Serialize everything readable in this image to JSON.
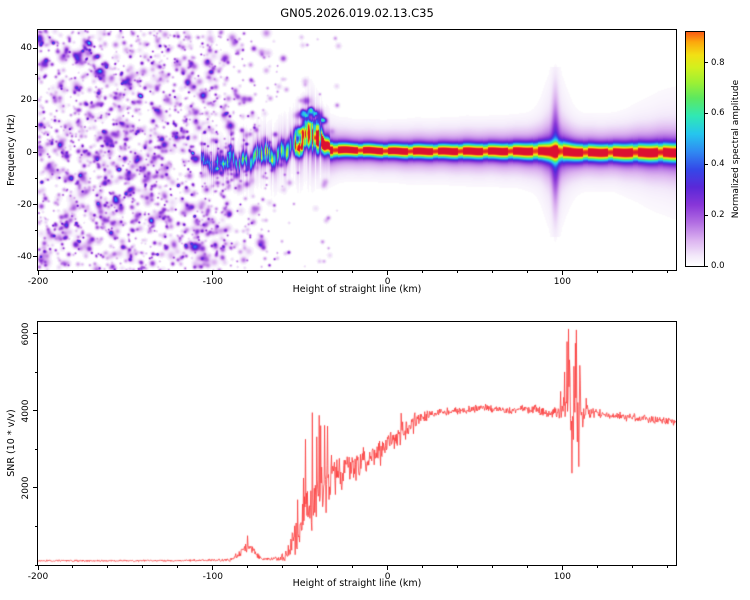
{
  "title": "GN05.2026.019.02.13.C35",
  "chart_data": [
    {
      "type": "heatmap",
      "title": "GN05.2026.019.02.13.C35",
      "xlabel": "Height of straight line (km)",
      "ylabel": "Frequency (Hz)",
      "xlim": [
        -200,
        165
      ],
      "ylim": [
        -45,
        47
      ],
      "xticks": [
        -200,
        -100,
        0,
        100
      ],
      "yticks": [
        -40,
        -20,
        0,
        20,
        40
      ],
      "x_minor_step": 20,
      "y_minor_step": 10,
      "seed": 7,
      "colorbar": {
        "label": "Normalized spectral amplitude",
        "ticks": [
          0.0,
          0.2,
          0.4,
          0.6,
          0.8
        ],
        "range": [
          0,
          0.92
        ],
        "colormap_stops": [
          [
            0.0,
            "#ffffff"
          ],
          [
            0.04,
            "#f3e9fa"
          ],
          [
            0.1,
            "#dcb4f0"
          ],
          [
            0.17,
            "#b26ee2"
          ],
          [
            0.24,
            "#8836d8"
          ],
          [
            0.31,
            "#5a28d8"
          ],
          [
            0.38,
            "#3448e8"
          ],
          [
            0.45,
            "#2f8af2"
          ],
          [
            0.52,
            "#25c6ee"
          ],
          [
            0.59,
            "#30e8b4"
          ],
          [
            0.66,
            "#5ce860"
          ],
          [
            0.72,
            "#9cf034"
          ],
          [
            0.78,
            "#d2f01e"
          ],
          [
            0.83,
            "#f2e014"
          ],
          [
            0.88,
            "#fca80c"
          ],
          [
            0.93,
            "#f85a14"
          ],
          [
            1.0,
            "#dc1030"
          ]
        ]
      },
      "noise_region": {
        "x_range": [
          -200,
          -52
        ],
        "full_density_until": -112,
        "amp_range": [
          0.05,
          0.3
        ],
        "blob_count": 2600,
        "tail": {
          "x_range": [
            -52,
            -28
          ],
          "count": 60
        },
        "cluster": {
          "x_range": [
            -53,
            -36
          ],
          "count": 50,
          "freq_offset": [
            -5,
            13
          ]
        }
      },
      "trace": {
        "points_format": "x_km, center_freq_hz, amplitude, sigma_hz",
        "start_x": -106.5,
        "points": [
          [
            -106,
            -2,
            0.32,
            2.0
          ],
          [
            -102,
            -4,
            0.34,
            2.0
          ],
          [
            -98,
            -2,
            0.38,
            2.0
          ],
          [
            -94,
            -5,
            0.36,
            2.0
          ],
          [
            -90,
            -3,
            0.42,
            2.1
          ],
          [
            -86,
            -4,
            0.4,
            2.1
          ],
          [
            -82,
            -1,
            0.46,
            2.2
          ],
          [
            -78,
            -3,
            0.48,
            2.2
          ],
          [
            -74,
            -2,
            0.52,
            2.3
          ],
          [
            -70,
            0,
            0.5,
            2.3
          ],
          [
            -66,
            -1,
            0.54,
            2.4
          ],
          [
            -62,
            1,
            0.58,
            2.4
          ],
          [
            -58,
            0,
            0.6,
            2.6
          ],
          [
            -54,
            2,
            0.64,
            2.8
          ],
          [
            -50,
            4,
            0.7,
            3.0
          ],
          [
            -47,
            7,
            0.74,
            3.2
          ],
          [
            -44,
            9,
            0.8,
            3.4
          ],
          [
            -42,
            6,
            0.82,
            3.1
          ],
          [
            -40,
            3,
            0.86,
            2.9
          ],
          [
            -38,
            4,
            0.9,
            2.6
          ],
          [
            -36,
            2,
            0.93,
            2.2
          ],
          [
            -33,
            1,
            0.96,
            1.9
          ],
          [
            -28,
            1,
            0.97,
            1.7
          ],
          [
            -20,
            1,
            0.97,
            1.6
          ],
          [
            -10,
            0.8,
            0.97,
            1.6
          ],
          [
            0,
            0.6,
            0.97,
            1.6
          ],
          [
            15,
            0.5,
            0.97,
            1.7
          ],
          [
            30,
            0.5,
            0.97,
            1.7
          ],
          [
            45,
            0.5,
            0.97,
            1.8
          ],
          [
            60,
            0.5,
            0.97,
            1.8
          ],
          [
            75,
            0.5,
            0.97,
            1.9
          ],
          [
            88,
            0.5,
            0.93,
            2.1
          ],
          [
            96,
            0.5,
            0.85,
            2.6
          ],
          [
            102,
            0.3,
            0.94,
            2.2
          ],
          [
            112,
            0,
            0.97,
            2.0
          ],
          [
            125,
            0,
            0.97,
            2.0
          ],
          [
            140,
            0,
            0.97,
            2.1
          ],
          [
            155,
            0,
            0.96,
            2.2
          ],
          [
            165,
            0,
            0.95,
            2.2
          ]
        ]
      },
      "vertical_streak": {
        "x": 96,
        "sigma_km": 2.0,
        "freq_sigma_hz": 15,
        "amp": 0.16
      }
    },
    {
      "type": "line",
      "xlabel": "Height of straight line (km)",
      "ylabel": "SNR (10 * v/v)",
      "xlim": [
        -200,
        165
      ],
      "ylim": [
        0,
        6300
      ],
      "xticks": [
        -200,
        -100,
        0,
        100
      ],
      "yticks": [
        2000,
        4000,
        6000
      ],
      "x_minor_step": 20,
      "y_minor_step": 1000,
      "seed": 13,
      "series": [
        {
          "name": "SNR",
          "color": "#fb3b3b",
          "base_points": [
            [
              -200,
              110
            ],
            [
              -150,
              110
            ],
            [
              -120,
              112
            ],
            [
              -100,
              125
            ],
            [
              -90,
              135
            ],
            [
              -84,
              300
            ],
            [
              -80,
              480
            ],
            [
              -77,
              380
            ],
            [
              -73,
              180
            ],
            [
              -68,
              150
            ],
            [
              -63,
              160
            ],
            [
              -58,
              260
            ],
            [
              -54,
              600
            ],
            [
              -50,
              1050
            ],
            [
              -46,
              1450
            ],
            [
              -42,
              1750
            ],
            [
              -38,
              2050
            ],
            [
              -34,
              2150
            ],
            [
              -30,
              2300
            ],
            [
              -25,
              2450
            ],
            [
              -20,
              2550
            ],
            [
              -15,
              2650
            ],
            [
              -10,
              2750
            ],
            [
              -5,
              2950
            ],
            [
              0,
              3100
            ],
            [
              5,
              3300
            ],
            [
              10,
              3500
            ],
            [
              15,
              3700
            ],
            [
              20,
              3850
            ],
            [
              25,
              3920
            ],
            [
              30,
              3960
            ],
            [
              40,
              4000
            ],
            [
              50,
              4050
            ],
            [
              55,
              4100
            ],
            [
              60,
              4050
            ],
            [
              70,
              4000
            ],
            [
              78,
              4080
            ],
            [
              85,
              4020
            ],
            [
              92,
              3950
            ],
            [
              98,
              3980
            ],
            [
              102,
              4100
            ],
            [
              104,
              4600
            ],
            [
              106,
              3400
            ],
            [
              108,
              4400
            ],
            [
              110,
              3800
            ],
            [
              113,
              3950
            ],
            [
              120,
              3920
            ],
            [
              130,
              3880
            ],
            [
              140,
              3820
            ],
            [
              150,
              3780
            ],
            [
              158,
              3750
            ],
            [
              165,
              3720
            ]
          ],
          "noise_points": [
            [
              -200,
              28
            ],
            [
              -120,
              28
            ],
            [
              -100,
              35
            ],
            [
              -88,
              60
            ],
            [
              -83,
              150
            ],
            [
              -78,
              130
            ],
            [
              -72,
              50
            ],
            [
              -65,
              45
            ],
            [
              -60,
              140
            ],
            [
              -55,
              380
            ],
            [
              -50,
              520
            ],
            [
              -46,
              650
            ],
            [
              -42,
              780
            ],
            [
              -38,
              820
            ],
            [
              -34,
              700
            ],
            [
              -30,
              520
            ],
            [
              -25,
              480
            ],
            [
              -20,
              450
            ],
            [
              -15,
              430
            ],
            [
              -10,
              400
            ],
            [
              -5,
              380
            ],
            [
              0,
              360
            ],
            [
              5,
              330
            ],
            [
              10,
              300
            ],
            [
              15,
              260
            ],
            [
              20,
              180
            ],
            [
              25,
              140
            ],
            [
              30,
              120
            ],
            [
              50,
              110
            ],
            [
              70,
              120
            ],
            [
              85,
              140
            ],
            [
              95,
              160
            ],
            [
              100,
              300
            ],
            [
              103,
              800
            ],
            [
              106,
              950
            ],
            [
              109,
              800
            ],
            [
              112,
              350
            ],
            [
              118,
              140
            ],
            [
              130,
              120
            ],
            [
              165,
              115
            ]
          ],
          "spikes": [
            [
              -80,
              760
            ],
            [
              -47,
              3260
            ],
            [
              -43,
              3950
            ],
            [
              -39,
              3880
            ],
            [
              -36,
              3620
            ],
            [
              -32,
              2850
            ],
            [
              103.5,
              6120
            ],
            [
              105.5,
              2380
            ],
            [
              107.5,
              5750
            ],
            [
              109.5,
              2550
            ]
          ]
        }
      ]
    }
  ]
}
